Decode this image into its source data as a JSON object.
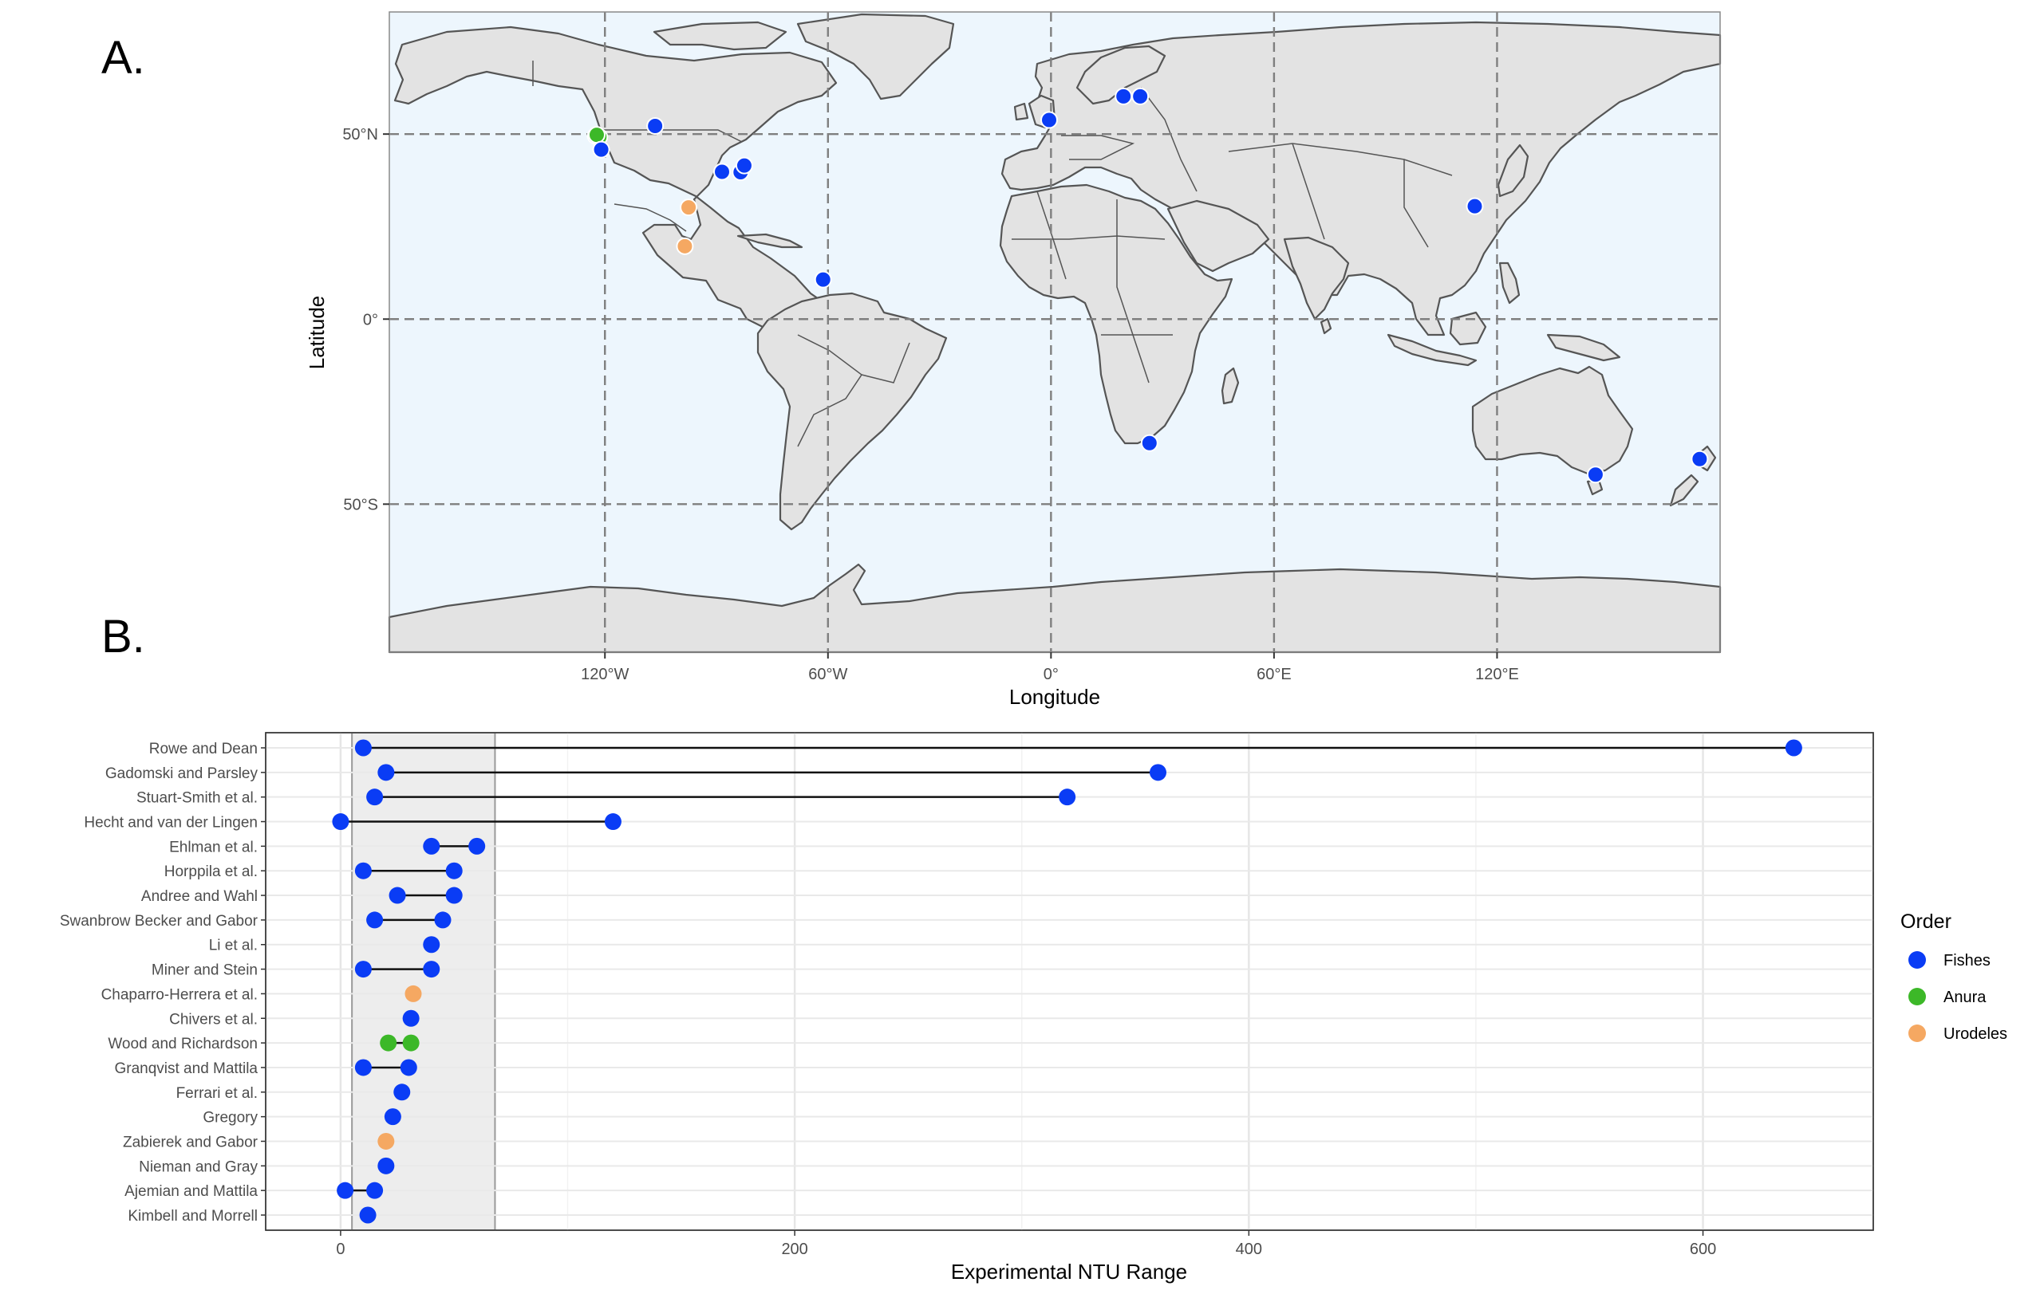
{
  "colors": {
    "fishes": "#0a3cf5",
    "anura": "#3cb828",
    "urodeles": "#f5a862",
    "ocean": "#edf6fd",
    "land": "#e3e3e3",
    "coast": "#555555",
    "shade": "#ededed"
  },
  "panel_a": {
    "label": "A.",
    "xlabel": "Longitude",
    "ylabel": "Latitude",
    "lon_ticks": [
      "120°W",
      "60°W",
      "0°",
      "60°E",
      "120°E"
    ],
    "lat_ticks": [
      "50°N",
      "0°",
      "50°S"
    ]
  },
  "panel_b": {
    "label": "B.",
    "xlabel": "Experimental NTU Range",
    "x_ticks": [
      "0",
      "200",
      "400",
      "600"
    ]
  },
  "legend": {
    "title": "Order",
    "items": [
      "Fishes",
      "Anura",
      "Urodeles"
    ]
  },
  "chart_data": [
    {
      "type": "scatter",
      "subtype": "map",
      "xlabel": "Longitude",
      "ylabel": "Latitude",
      "xlim": [
        -178,
        180
      ],
      "ylim": [
        -90,
        83
      ],
      "graticule_lon": [
        -120,
        -60,
        0,
        60,
        120
      ],
      "graticule_lat": [
        50,
        0,
        -50
      ],
      "points": [
        {
          "lon": -122.5,
          "lat": 49.5,
          "order": "Fishes"
        },
        {
          "lon": -121.5,
          "lat": 49.2,
          "order": "Anura"
        },
        {
          "lon": -122.2,
          "lat": 49.8,
          "order": "Anura"
        },
        {
          "lon": -106.5,
          "lat": 52.2,
          "order": "Fishes"
        },
        {
          "lon": -121.0,
          "lat": 45.8,
          "order": "Fishes"
        },
        {
          "lon": -88.5,
          "lat": 39.8,
          "order": "Fishes"
        },
        {
          "lon": -83.5,
          "lat": 39.7,
          "order": "Fishes"
        },
        {
          "lon": -82.5,
          "lat": 41.5,
          "order": "Fishes"
        },
        {
          "lon": -97.5,
          "lat": 30.2,
          "order": "Urodeles"
        },
        {
          "lon": -98.5,
          "lat": 19.7,
          "order": "Urodeles"
        },
        {
          "lon": -61.3,
          "lat": 10.7,
          "order": "Fishes"
        },
        {
          "lon": -0.5,
          "lat": 53.8,
          "order": "Fishes"
        },
        {
          "lon": 19.5,
          "lat": 60.2,
          "order": "Fishes"
        },
        {
          "lon": 24.0,
          "lat": 60.2,
          "order": "Fishes"
        },
        {
          "lon": 114.0,
          "lat": 30.5,
          "order": "Fishes"
        },
        {
          "lon": 26.5,
          "lat": -33.5,
          "order": "Fishes"
        },
        {
          "lon": 146.5,
          "lat": -42.0,
          "order": "Fishes"
        },
        {
          "lon": 174.5,
          "lat": -37.8,
          "order": "Fishes"
        }
      ]
    },
    {
      "type": "scatter",
      "subtype": "dumbbell",
      "xlabel": "Experimental NTU Range",
      "xlim": [
        -33,
        675
      ],
      "x_ticks": [
        0,
        200,
        400,
        600
      ],
      "shaded_range": [
        5,
        68
      ],
      "series": [
        {
          "name": "Fishes",
          "color": "#0a3cf5"
        },
        {
          "name": "Anura",
          "color": "#3cb828"
        },
        {
          "name": "Urodeles",
          "color": "#f5a862"
        }
      ],
      "categories": [
        "Rowe and Dean",
        "Gadomski and Parsley",
        "Stuart-Smith et al.",
        "Hecht and van der Lingen",
        "Ehlman et al.",
        "Horppila et al.",
        "Andree and Wahl",
        "Swanbrow Becker and Gabor",
        "Li et al.",
        "Miner and Stein",
        "Chaparro-Herrera et al.",
        "Chivers et al.",
        "Wood and Richardson",
        "Granqvist and Mattila",
        "Ferrari et al.",
        "Gregory",
        "Zabierek and Gabor",
        "Nieman and Gray",
        "Ajemian and Mattila",
        "Kimbell and Morrell"
      ],
      "ranges": [
        {
          "study": "Rowe and Dean",
          "min": 10,
          "max": 640,
          "order": "Fishes"
        },
        {
          "study": "Gadomski and Parsley",
          "min": 20,
          "max": 360,
          "order": "Fishes"
        },
        {
          "study": "Stuart-Smith et al.",
          "min": 15,
          "max": 320,
          "order": "Fishes"
        },
        {
          "study": "Hecht and van der Lingen",
          "min": 0,
          "max": 120,
          "order": "Fishes"
        },
        {
          "study": "Ehlman et al.",
          "min": 40,
          "max": 60,
          "order": "Fishes"
        },
        {
          "study": "Horppila et al.",
          "min": 10,
          "max": 50,
          "order": "Fishes"
        },
        {
          "study": "Andree and Wahl",
          "min": 25,
          "max": 50,
          "order": "Fishes"
        },
        {
          "study": "Swanbrow Becker and Gabor",
          "min": 15,
          "max": 45,
          "order": "Fishes"
        },
        {
          "study": "Li et al.",
          "min": 40,
          "max": 40,
          "order": "Fishes"
        },
        {
          "study": "Miner and Stein",
          "min": 10,
          "max": 40,
          "order": "Fishes"
        },
        {
          "study": "Chaparro-Herrera et al.",
          "min": 32,
          "max": 32,
          "order": "Urodeles"
        },
        {
          "study": "Chivers et al.",
          "min": 31,
          "max": 31,
          "order": "Fishes"
        },
        {
          "study": "Wood and Richardson",
          "min": 21,
          "max": 31,
          "order": "Anura"
        },
        {
          "study": "Granqvist and Mattila",
          "min": 10,
          "max": 30,
          "order": "Fishes"
        },
        {
          "study": "Ferrari et al.",
          "min": 27,
          "max": 27,
          "order": "Fishes"
        },
        {
          "study": "Gregory",
          "min": 23,
          "max": 23,
          "order": "Fishes"
        },
        {
          "study": "Zabierek and Gabor",
          "min": 20,
          "max": 20,
          "order": "Urodeles"
        },
        {
          "study": "Nieman and Gray",
          "min": 20,
          "max": 20,
          "order": "Fishes"
        },
        {
          "study": "Ajemian and Mattila",
          "min": 2,
          "max": 15,
          "order": "Fishes"
        },
        {
          "study": "Kimbell and Morrell",
          "min": 12,
          "max": 12,
          "order": "Fishes"
        }
      ]
    }
  ]
}
